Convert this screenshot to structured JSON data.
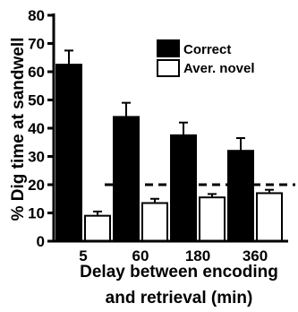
{
  "chart_data": {
    "type": "bar",
    "categories": [
      "5",
      "60",
      "180",
      "360"
    ],
    "series": [
      {
        "name": "Correct",
        "values": [
          62.5,
          44,
          37.5,
          32
        ],
        "errors": [
          5,
          5,
          4.5,
          4.5
        ],
        "color": "#000000"
      },
      {
        "name": "Aver. novel",
        "values": [
          9,
          13.5,
          15.5,
          17
        ],
        "errors": [
          1.5,
          1.5,
          1.2,
          1.2
        ],
        "color": "#ffffff"
      }
    ],
    "reference_line": {
      "value": 20,
      "style": "dashed"
    },
    "ylabel": "% Dig time at sandwell",
    "xlabel_lines": [
      "Delay between encoding",
      "and retrieval (min)"
    ],
    "ylim": [
      0,
      80
    ],
    "yticks": [
      0,
      10,
      20,
      30,
      40,
      50,
      60,
      70,
      80
    ],
    "legend_position": "top-right",
    "grid": false
  }
}
